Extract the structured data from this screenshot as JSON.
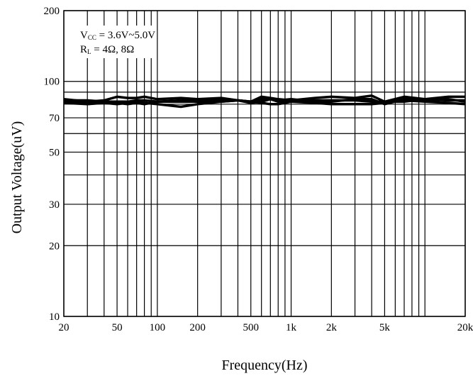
{
  "chart_data": {
    "type": "line",
    "title": "",
    "xlabel": "Frequency(Hz)",
    "ylabel": "Output Voltage(uV)",
    "xscale": "log",
    "yscale": "log",
    "xlim": [
      20,
      20000
    ],
    "ylim": [
      10,
      200
    ],
    "grid": true,
    "x_ticks": [
      {
        "value": 20,
        "label": "20"
      },
      {
        "value": 50,
        "label": "50"
      },
      {
        "value": 100,
        "label": "100"
      },
      {
        "value": 200,
        "label": "200"
      },
      {
        "value": 500,
        "label": "500"
      },
      {
        "value": 1000,
        "label": "1k"
      },
      {
        "value": 2000,
        "label": "2k"
      },
      {
        "value": 5000,
        "label": "5k"
      },
      {
        "value": 20000,
        "label": "20k"
      }
    ],
    "y_ticks": [
      {
        "value": 10,
        "label": "10"
      },
      {
        "value": 20,
        "label": "20"
      },
      {
        "value": 30,
        "label": "30"
      },
      {
        "value": 50,
        "label": "50"
      },
      {
        "value": 70,
        "label": "70"
      },
      {
        "value": 100,
        "label": "100"
      },
      {
        "value": 200,
        "label": "200"
      }
    ],
    "x_grid": [
      20,
      30,
      40,
      50,
      60,
      70,
      80,
      90,
      100,
      200,
      300,
      400,
      500,
      600,
      700,
      800,
      900,
      1000,
      2000,
      3000,
      4000,
      5000,
      6000,
      7000,
      8000,
      9000,
      10000,
      20000
    ],
    "y_grid": [
      10,
      20,
      30,
      40,
      50,
      60,
      70,
      80,
      90,
      100,
      200
    ],
    "annotation": {
      "line1": {
        "main": "V",
        "sub": "CC",
        "rest": " = 3.6V~5.0V"
      },
      "line2": {
        "main": "R",
        "sub": "L",
        "rest": " = 4Ω, 8Ω"
      }
    },
    "series": [
      {
        "x": [
          20,
          30,
          40,
          50,
          60,
          70,
          80,
          100,
          150,
          200,
          300,
          400,
          500,
          600,
          700,
          800,
          1000,
          1500,
          2000,
          3000,
          4000,
          5000,
          7000,
          10000,
          15000,
          20000
        ],
        "y": [
          84,
          82,
          83,
          86,
          85,
          85,
          86,
          84,
          85,
          84,
          85,
          83,
          82,
          86,
          85,
          84,
          83,
          85,
          86,
          85,
          87,
          82,
          86,
          84,
          86,
          86
        ]
      },
      {
        "x": [
          20,
          30,
          40,
          50,
          60,
          70,
          80,
          100,
          150,
          200,
          300,
          400,
          500,
          600,
          700,
          800,
          1000,
          1500,
          2000,
          3000,
          4000,
          5000,
          7000,
          10000,
          15000,
          20000
        ],
        "y": [
          81,
          80,
          81,
          80,
          81,
          82,
          81,
          80,
          78,
          80,
          82,
          83,
          81,
          82,
          84,
          83,
          84,
          82,
          82,
          84,
          84,
          80,
          84,
          83,
          84,
          82
        ]
      },
      {
        "x": [
          20,
          30,
          40,
          50,
          60,
          70,
          80,
          100,
          150,
          200,
          300,
          400,
          500,
          600,
          700,
          800,
          1000,
          1500,
          2000,
          3000,
          4000,
          5000,
          7000,
          10000,
          15000,
          20000
        ],
        "y": [
          82,
          81,
          82,
          81,
          80,
          81,
          80,
          82,
          82,
          82,
          82,
          83,
          82,
          81,
          80,
          80,
          82,
          81,
          80,
          80,
          80,
          81,
          83,
          82,
          81,
          80
        ]
      },
      {
        "x": [
          20,
          30,
          40,
          50,
          60,
          70,
          80,
          100,
          150,
          200,
          300,
          400,
          500,
          600,
          700,
          800,
          1000,
          1500,
          2000,
          3000,
          4000,
          5000,
          7000,
          10000,
          15000,
          20000
        ],
        "y": [
          83,
          83,
          82,
          82,
          82,
          83,
          83,
          82,
          83,
          83,
          84,
          83,
          82,
          84,
          84,
          82,
          83,
          83,
          83,
          83,
          82,
          82,
          82,
          84,
          83,
          83
        ]
      }
    ]
  }
}
